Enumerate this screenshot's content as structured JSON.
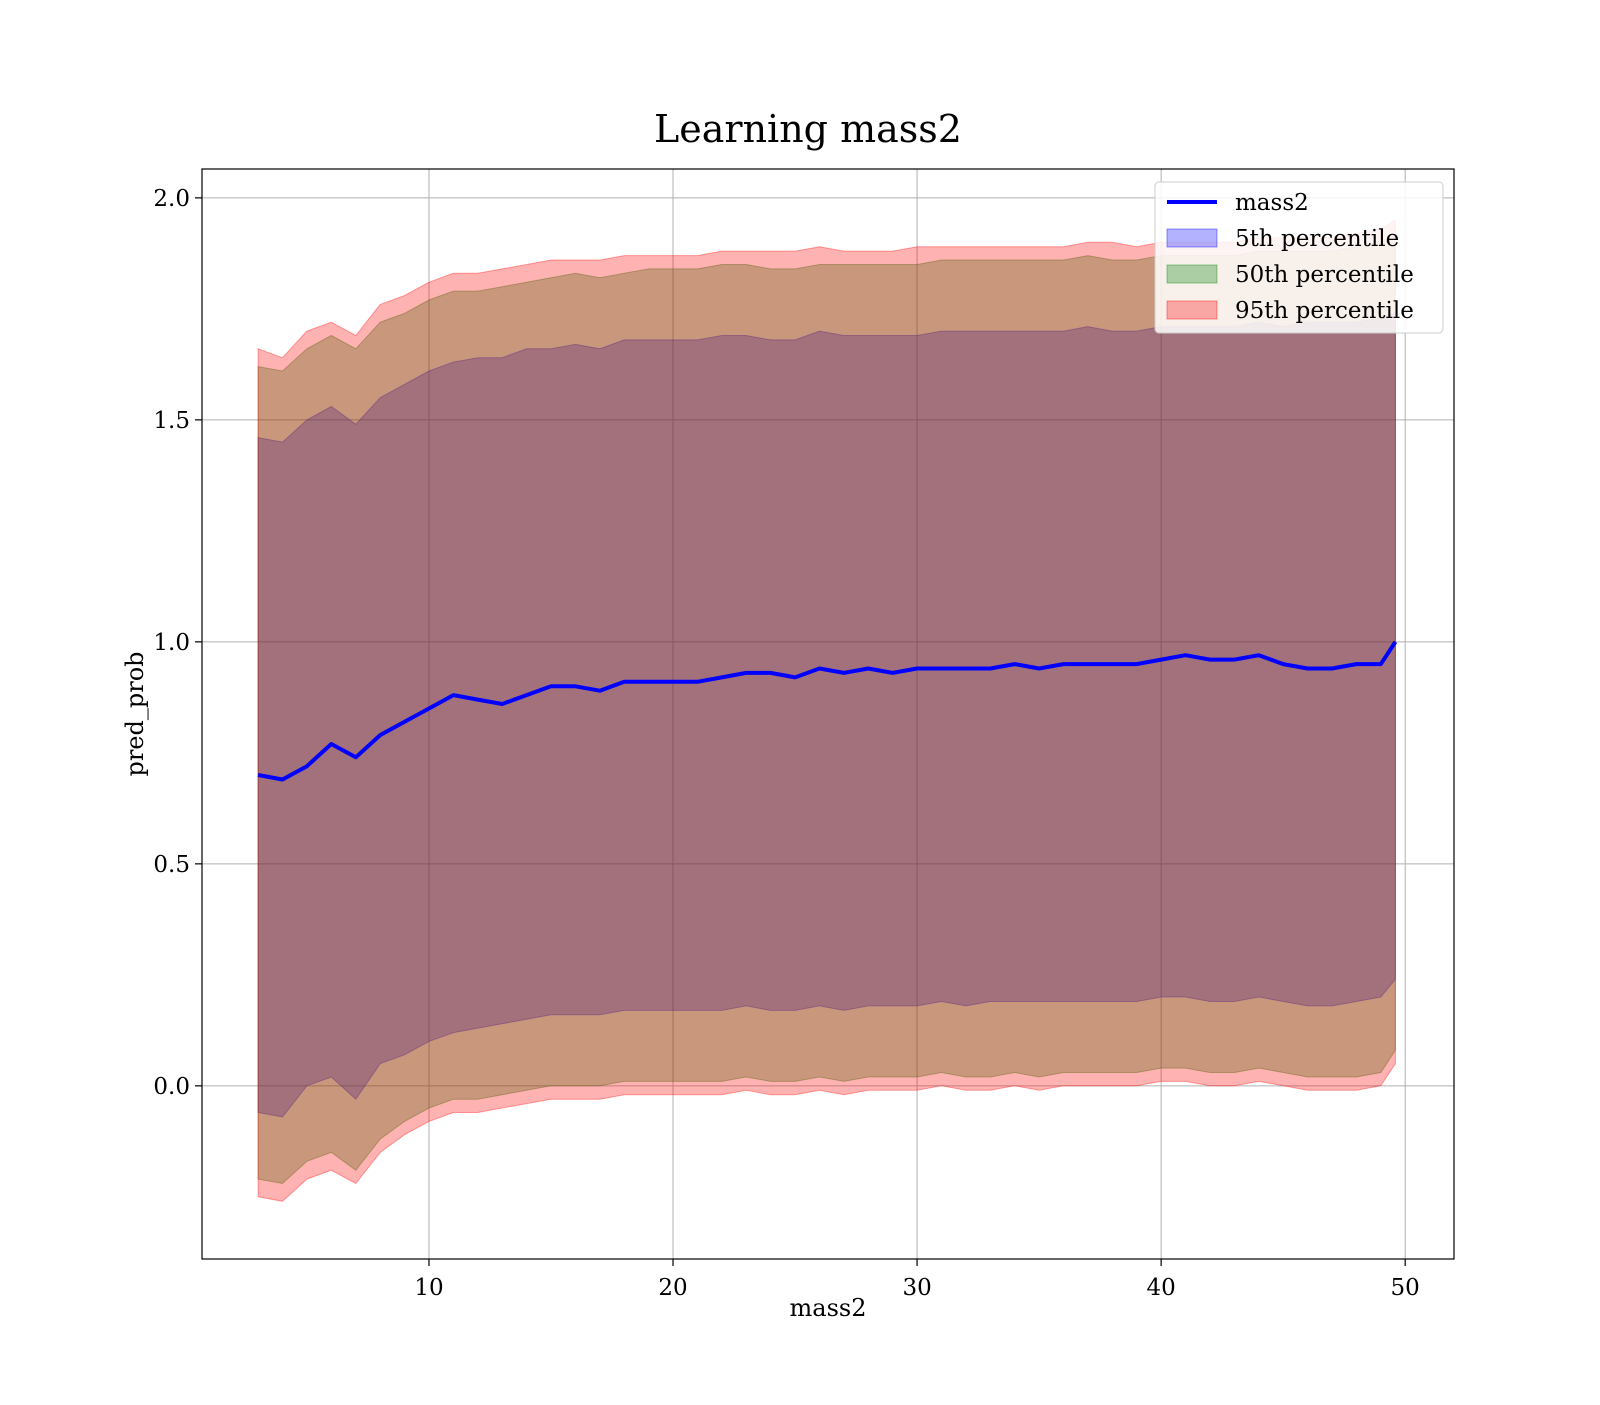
{
  "chart_data": {
    "type": "area",
    "title": "Learning mass2",
    "xlabel": "mass2",
    "ylabel": "pred_prob",
    "xlim": [
      0.7,
      52.0
    ],
    "ylim": [
      -0.39,
      2.065
    ],
    "xticks": [
      10,
      20,
      30,
      40,
      50
    ],
    "yticks": [
      0.0,
      0.5,
      1.0,
      1.5,
      2.0
    ],
    "xtick_labels": [
      "10",
      "20",
      "30",
      "40",
      "50"
    ],
    "ytick_labels": [
      "0.0",
      "0.5",
      "1.0",
      "1.5",
      "2.0"
    ],
    "grid": true,
    "legend_position": "top-right",
    "x": [
      3.0,
      4.0,
      5.0,
      6.0,
      7.0,
      8.0,
      9.0,
      10.0,
      11.0,
      12.0,
      13.0,
      14.0,
      15.0,
      16.0,
      17.0,
      18.0,
      19.0,
      20.0,
      21.0,
      22.0,
      23.0,
      24.0,
      25.0,
      26.0,
      27.0,
      28.0,
      29.0,
      30.0,
      31.0,
      32.0,
      33.0,
      34.0,
      35.0,
      36.0,
      37.0,
      38.0,
      39.0,
      40.0,
      41.0,
      42.0,
      43.0,
      44.0,
      45.0,
      46.0,
      47.0,
      48.0,
      49.0,
      49.6
    ],
    "series": [
      {
        "name": "mass2",
        "kind": "line",
        "color": "#0000ff",
        "values": [
          0.7,
          0.69,
          0.72,
          0.77,
          0.74,
          0.79,
          0.82,
          0.85,
          0.88,
          0.87,
          0.86,
          0.88,
          0.9,
          0.9,
          0.89,
          0.91,
          0.91,
          0.91,
          0.91,
          0.92,
          0.93,
          0.93,
          0.92,
          0.94,
          0.93,
          0.94,
          0.93,
          0.94,
          0.94,
          0.94,
          0.94,
          0.95,
          0.94,
          0.95,
          0.95,
          0.95,
          0.95,
          0.96,
          0.97,
          0.96,
          0.96,
          0.97,
          0.95,
          0.94,
          0.94,
          0.95,
          0.95,
          1.0
        ]
      },
      {
        "name": "5th percentile",
        "kind": "band",
        "color": "#0000ff",
        "lower": [
          -0.06,
          -0.07,
          0.0,
          0.02,
          -0.03,
          0.05,
          0.07,
          0.1,
          0.12,
          0.13,
          0.14,
          0.15,
          0.16,
          0.16,
          0.16,
          0.17,
          0.17,
          0.17,
          0.17,
          0.17,
          0.18,
          0.17,
          0.17,
          0.18,
          0.17,
          0.18,
          0.18,
          0.18,
          0.19,
          0.18,
          0.19,
          0.19,
          0.19,
          0.19,
          0.19,
          0.19,
          0.19,
          0.2,
          0.2,
          0.19,
          0.19,
          0.2,
          0.19,
          0.18,
          0.18,
          0.19,
          0.2,
          0.24
        ],
        "upper": [
          1.46,
          1.45,
          1.5,
          1.53,
          1.49,
          1.55,
          1.58,
          1.61,
          1.63,
          1.64,
          1.64,
          1.66,
          1.66,
          1.67,
          1.66,
          1.68,
          1.68,
          1.68,
          1.68,
          1.69,
          1.69,
          1.68,
          1.68,
          1.7,
          1.69,
          1.69,
          1.69,
          1.69,
          1.7,
          1.7,
          1.7,
          1.7,
          1.7,
          1.7,
          1.71,
          1.7,
          1.7,
          1.71,
          1.71,
          1.71,
          1.71,
          1.72,
          1.71,
          1.72,
          1.72,
          1.72,
          1.73,
          1.74
        ]
      },
      {
        "name": "50th percentile",
        "kind": "band",
        "color": "#008000",
        "lower": [
          -0.21,
          -0.22,
          -0.17,
          -0.15,
          -0.19,
          -0.12,
          -0.08,
          -0.05,
          -0.03,
          -0.03,
          -0.02,
          -0.01,
          0.0,
          0.0,
          0.0,
          0.01,
          0.01,
          0.01,
          0.01,
          0.01,
          0.02,
          0.01,
          0.01,
          0.02,
          0.01,
          0.02,
          0.02,
          0.02,
          0.03,
          0.02,
          0.02,
          0.03,
          0.02,
          0.03,
          0.03,
          0.03,
          0.03,
          0.04,
          0.04,
          0.03,
          0.03,
          0.04,
          0.03,
          0.02,
          0.02,
          0.02,
          0.03,
          0.08
        ],
        "upper": [
          1.62,
          1.61,
          1.66,
          1.69,
          1.66,
          1.72,
          1.74,
          1.77,
          1.79,
          1.79,
          1.8,
          1.81,
          1.82,
          1.83,
          1.82,
          1.83,
          1.84,
          1.84,
          1.84,
          1.85,
          1.85,
          1.84,
          1.84,
          1.85,
          1.85,
          1.85,
          1.85,
          1.85,
          1.86,
          1.86,
          1.86,
          1.86,
          1.86,
          1.86,
          1.87,
          1.86,
          1.86,
          1.87,
          1.87,
          1.87,
          1.87,
          1.88,
          1.88,
          1.88,
          1.88,
          1.89,
          1.9,
          1.9
        ]
      },
      {
        "name": "95th percentile",
        "kind": "band",
        "color": "#ff0000",
        "lower": [
          -0.25,
          -0.26,
          -0.21,
          -0.19,
          -0.22,
          -0.15,
          -0.11,
          -0.08,
          -0.06,
          -0.06,
          -0.05,
          -0.04,
          -0.03,
          -0.03,
          -0.03,
          -0.02,
          -0.02,
          -0.02,
          -0.02,
          -0.02,
          -0.01,
          -0.02,
          -0.02,
          -0.01,
          -0.02,
          -0.01,
          -0.01,
          -0.01,
          0.0,
          -0.01,
          -0.01,
          0.0,
          -0.01,
          0.0,
          0.0,
          0.0,
          0.0,
          0.01,
          0.01,
          0.0,
          0.0,
          0.01,
          0.0,
          -0.01,
          -0.01,
          -0.01,
          0.0,
          0.05
        ],
        "upper": [
          1.66,
          1.64,
          1.7,
          1.72,
          1.69,
          1.76,
          1.78,
          1.81,
          1.83,
          1.83,
          1.84,
          1.85,
          1.86,
          1.86,
          1.86,
          1.87,
          1.87,
          1.87,
          1.87,
          1.88,
          1.88,
          1.88,
          1.88,
          1.89,
          1.88,
          1.88,
          1.88,
          1.89,
          1.89,
          1.89,
          1.89,
          1.89,
          1.89,
          1.89,
          1.9,
          1.9,
          1.89,
          1.9,
          1.9,
          1.9,
          1.9,
          1.91,
          1.91,
          1.91,
          1.91,
          1.92,
          1.93,
          1.95
        ]
      }
    ]
  }
}
